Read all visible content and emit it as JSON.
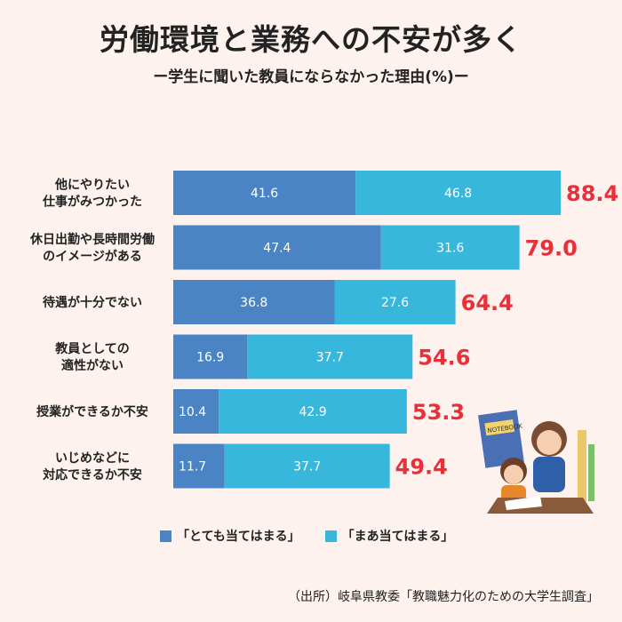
{
  "title": "労働環境と業務への不安が多く",
  "subtitle": "ー学生に聞いた教員にならなかった理由(%)ー",
  "source": "（出所）岐阜県教委「教職魅力化のための大学生調査」",
  "colors": {
    "series1": "#4a84c4",
    "series2": "#38b7dd",
    "total": "#e8303a"
  },
  "illustration_text": "NOTEBOOK",
  "chart_data": {
    "type": "bar",
    "orientation": "horizontal",
    "stacked": true,
    "categories": [
      [
        "他にやりたい",
        "仕事がみつかった"
      ],
      [
        "休日出勤や長時間労働",
        "のイメージがある"
      ],
      [
        "待遇が十分でない"
      ],
      [
        "教員としての",
        "適性がない"
      ],
      [
        "授業ができるか不安"
      ],
      [
        "いじめなどに",
        "対応できるか不安"
      ]
    ],
    "series": [
      {
        "name": "「とても当てはまる」",
        "values": [
          41.6,
          47.4,
          36.8,
          16.9,
          10.4,
          11.7
        ]
      },
      {
        "name": "「まあ当てはまる」",
        "values": [
          46.8,
          31.6,
          27.6,
          37.7,
          42.9,
          37.7
        ]
      }
    ],
    "totals": [
      "88.4",
      "79.0",
      "64.4",
      "54.6",
      "53.3",
      "49.4"
    ],
    "xlim": [
      0,
      88.4
    ],
    "legend_position": "bottom"
  }
}
